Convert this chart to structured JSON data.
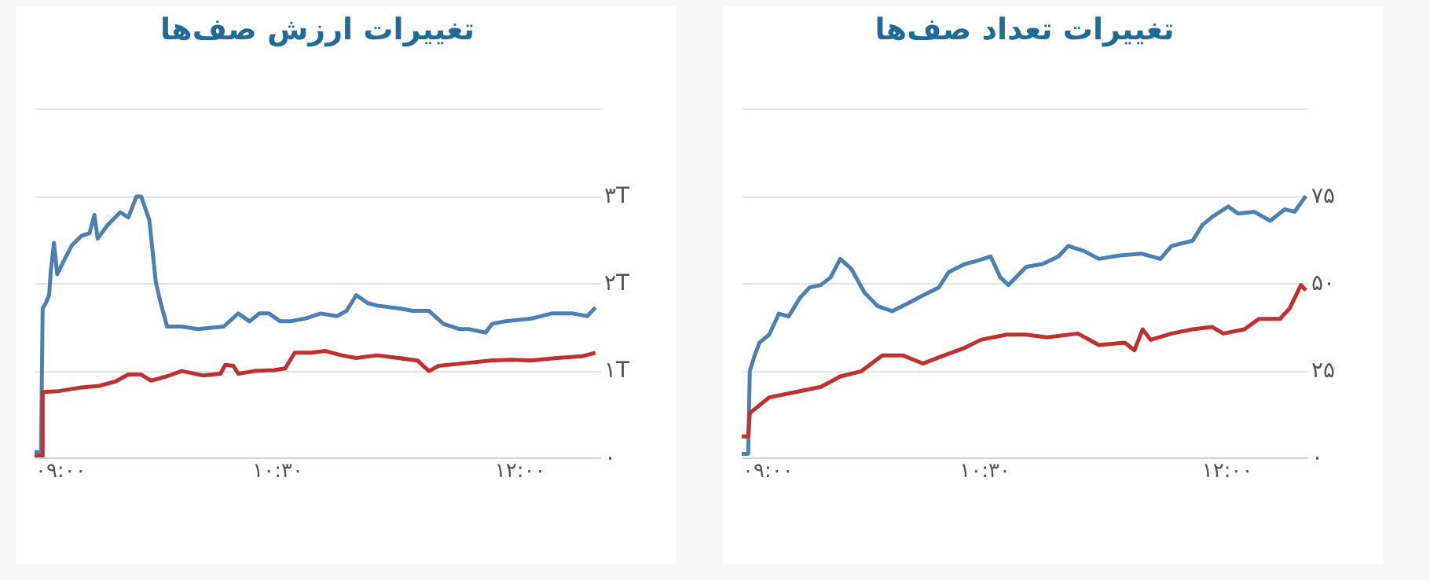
{
  "chart_data": [
    {
      "type": "line",
      "title": "تغییرات ارزش صف‌ها",
      "xlim": [
        9,
        12.5
      ],
      "ylim": [
        0,
        4
      ],
      "xticks": [
        {
          "value": 9,
          "label": "۰۹:۰۰"
        },
        {
          "value": 10.5,
          "label": "۱۰:۳۰"
        },
        {
          "value": 12,
          "label": "۱۲:۰۰"
        }
      ],
      "yticks": [
        {
          "value": 0,
          "label": "۰"
        },
        {
          "value": 1,
          "label": "۱T"
        },
        {
          "value": 2,
          "label": "۲T"
        },
        {
          "value": 3,
          "label": "۳T"
        },
        {
          "value": 4,
          "label": null
        }
      ],
      "grid": "y",
      "marker": "none",
      "line_style": "solid",
      "series": [
        {
          "color": "#4a80b4",
          "x": [
            9.0,
            9.04,
            9.05,
            9.07,
            9.09,
            9.1,
            9.12,
            9.14,
            9.18,
            9.23,
            9.29,
            9.34,
            9.37,
            9.39,
            9.45,
            9.53,
            9.58,
            9.63,
            9.66,
            9.71,
            9.73,
            9.75,
            9.78,
            9.82,
            9.91,
            10.01,
            10.17,
            10.26,
            10.33,
            10.39,
            10.45,
            10.52,
            10.58,
            10.67,
            10.77,
            10.87,
            10.93,
            10.99,
            11.06,
            11.12,
            11.25,
            11.34,
            11.44,
            11.53,
            11.63,
            11.69,
            11.79,
            11.83,
            11.91,
            12.07,
            12.2,
            12.33,
            12.42,
            12.47
          ],
          "values": [
            0.06,
            0.06,
            1.71,
            1.77,
            1.86,
            2.13,
            2.46,
            2.1,
            2.25,
            2.43,
            2.54,
            2.57,
            2.78,
            2.51,
            2.66,
            2.81,
            2.75,
            2.99,
            2.99,
            2.72,
            2.37,
            2.01,
            1.77,
            1.5,
            1.5,
            1.47,
            1.5,
            1.65,
            1.56,
            1.65,
            1.65,
            1.56,
            1.56,
            1.59,
            1.65,
            1.62,
            1.68,
            1.86,
            1.77,
            1.74,
            1.71,
            1.68,
            1.68,
            1.53,
            1.47,
            1.47,
            1.43,
            1.53,
            1.56,
            1.59,
            1.65,
            1.65,
            1.62,
            1.72
          ]
        },
        {
          "color": "#c0302e",
          "x": [
            9.0,
            9.05,
            9.05,
            9.15,
            9.28,
            9.4,
            9.5,
            9.58,
            9.66,
            9.72,
            9.82,
            9.91,
            10.04,
            10.15,
            10.18,
            10.23,
            10.26,
            10.36,
            10.48,
            10.55,
            10.61,
            10.71,
            10.8,
            10.9,
            10.99,
            11.12,
            11.25,
            11.37,
            11.44,
            11.5,
            11.66,
            11.82,
            11.95,
            12.07,
            12.23,
            12.39,
            12.47
          ],
          "values": [
            0.02,
            0.02,
            0.75,
            0.76,
            0.8,
            0.82,
            0.87,
            0.95,
            0.95,
            0.88,
            0.93,
            0.99,
            0.94,
            0.96,
            1.06,
            1.05,
            0.96,
            0.99,
            1.0,
            1.02,
            1.2,
            1.2,
            1.22,
            1.17,
            1.14,
            1.17,
            1.14,
            1.11,
            0.99,
            1.05,
            1.08,
            1.11,
            1.12,
            1.11,
            1.14,
            1.16,
            1.2
          ]
        }
      ]
    },
    {
      "type": "line",
      "title": "تغییرات تعداد صف‌ها",
      "xlim": [
        9,
        12.5
      ],
      "ylim": [
        0,
        100
      ],
      "xticks": [
        {
          "value": 9,
          "label": "۰۹:۰۰"
        },
        {
          "value": 10.5,
          "label": "۱۰:۳۰"
        },
        {
          "value": 12,
          "label": "۱۲:۰۰"
        }
      ],
      "yticks": [
        {
          "value": 0,
          "label": "۰"
        },
        {
          "value": 25,
          "label": "۲۵"
        },
        {
          "value": 50,
          "label": "۵۰"
        },
        {
          "value": 75,
          "label": "۷۵"
        },
        {
          "value": 100,
          "label": null
        }
      ],
      "grid": "y",
      "marker": "none",
      "line_style": "solid",
      "series": [
        {
          "color": "#4a80b4",
          "x": [
            9.0,
            9.04,
            9.05,
            9.08,
            9.11,
            9.17,
            9.23,
            9.29,
            9.36,
            9.42,
            9.49,
            9.55,
            9.61,
            9.68,
            9.76,
            9.84,
            9.93,
            10.03,
            10.12,
            10.22,
            10.28,
            10.38,
            10.44,
            10.54,
            10.6,
            10.65,
            10.76,
            10.86,
            10.96,
            11.02,
            11.12,
            11.21,
            11.34,
            11.47,
            11.59,
            11.66,
            11.79,
            11.85,
            11.91,
            12.01,
            12.07,
            12.17,
            12.27,
            12.36,
            12.42,
            12.49
          ],
          "values": [
            1.0,
            1.0,
            24.7,
            29.2,
            32.9,
            35.2,
            41.2,
            40.4,
            45.7,
            48.7,
            49.4,
            51.6,
            56.9,
            53.9,
            47.2,
            43.4,
            41.9,
            44.2,
            46.4,
            48.7,
            53.1,
            55.4,
            56.1,
            57.6,
            51.6,
            49.4,
            54.6,
            55.4,
            57.6,
            60.6,
            59.1,
            56.9,
            57.9,
            58.4,
            56.9,
            60.6,
            62.1,
            66.6,
            68.9,
            71.9,
            69.9,
            70.4,
            67.8,
            71.1,
            70.4,
            74.9
          ]
        },
        {
          "color": "#c0302e",
          "x": [
            9.0,
            9.04,
            9.05,
            9.17,
            9.33,
            9.49,
            9.61,
            9.74,
            9.87,
            10.0,
            10.12,
            10.25,
            10.38,
            10.48,
            10.64,
            10.76,
            10.89,
            11.08,
            11.21,
            11.37,
            11.43,
            11.48,
            11.53,
            11.66,
            11.79,
            11.91,
            11.98,
            12.11,
            12.2,
            12.33,
            12.39,
            12.46,
            12.49
          ],
          "values": [
            6.0,
            6.0,
            12.7,
            17.2,
            18.7,
            20.2,
            23.2,
            24.7,
            29.2,
            29.2,
            26.9,
            29.2,
            31.4,
            33.7,
            35.2,
            35.2,
            34.4,
            35.5,
            32.2,
            32.9,
            30.7,
            36.7,
            33.7,
            35.5,
            36.7,
            37.4,
            35.5,
            36.7,
            39.7,
            39.7,
            42.7,
            49.4,
            47.9
          ]
        }
      ]
    }
  ]
}
